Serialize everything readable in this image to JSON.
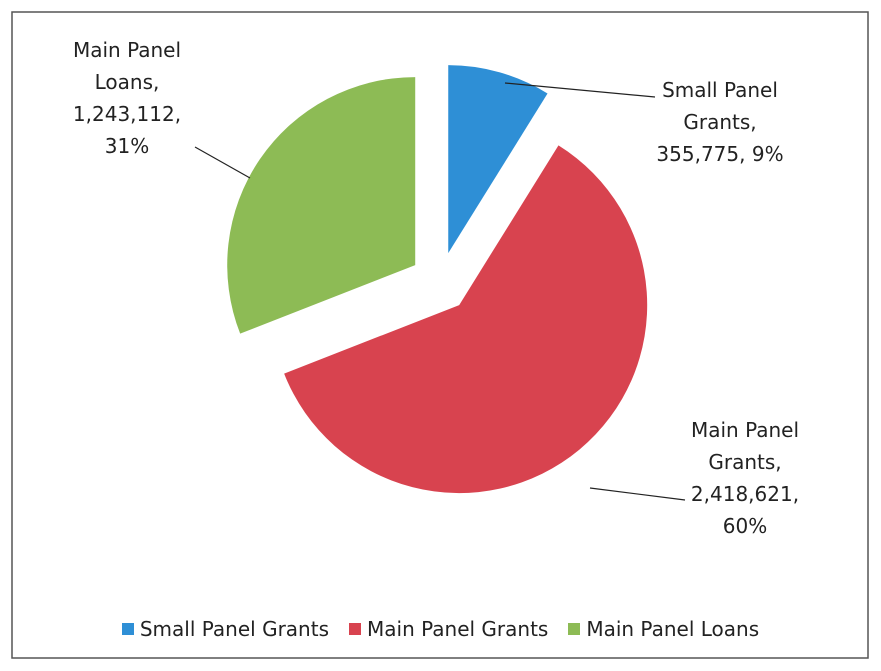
{
  "chart_data": {
    "type": "pie",
    "categories": [
      "Small Panel Grants",
      "Main Panel Grants",
      "Main Panel Loans"
    ],
    "values": [
      355775,
      2418621,
      1243112
    ],
    "value_labels": [
      "355,775",
      "2,418,621",
      "1,243,112"
    ],
    "percent_labels": [
      "9%",
      "60%",
      "31%"
    ],
    "colors": [
      "#2e8fd6",
      "#d8434f",
      "#8dbb55"
    ],
    "legend": "bottom"
  }
}
